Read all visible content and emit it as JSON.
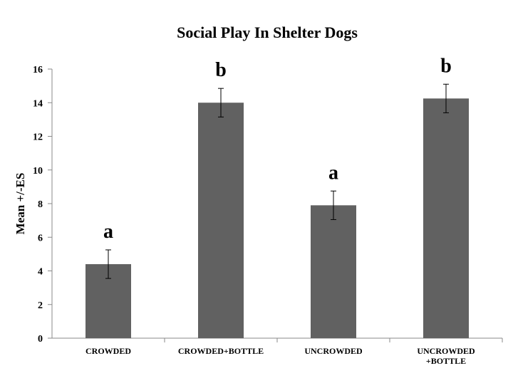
{
  "chart_data": {
    "type": "bar",
    "title": "Social Play In Shelter Dogs",
    "xlabel": "",
    "ylabel": "Mean +/-ES",
    "ylim": [
      0,
      16
    ],
    "yticks": [
      0,
      2,
      4,
      6,
      8,
      10,
      12,
      14,
      16
    ],
    "grid": false,
    "legend": "none",
    "categories": [
      [
        "CROWDED"
      ],
      [
        "CROWDED+BOTTLE"
      ],
      [
        "UNCROWDED"
      ],
      [
        "UNCROWDED",
        "+BOTTLE"
      ]
    ],
    "values": [
      4.4,
      14.0,
      7.9,
      14.25
    ],
    "errors": [
      0.85,
      0.85,
      0.85,
      0.85
    ],
    "significance_labels": [
      "a",
      "b",
      "a",
      "b"
    ],
    "bar_color": "#616161",
    "axis_color": "#888888"
  }
}
